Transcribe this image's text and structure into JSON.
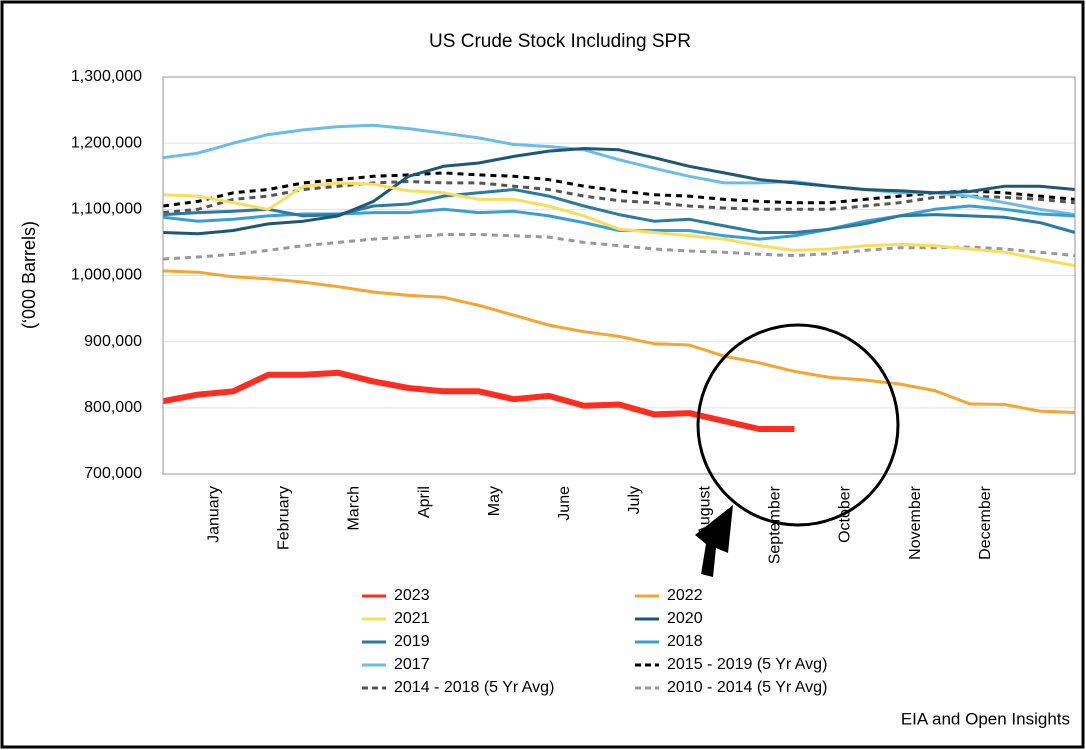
{
  "chart_data": {
    "type": "line",
    "title": "US Crude Stock Including SPR",
    "y_label": "(‘000 Barrels)",
    "source": "EIA and Open Insights",
    "categories": [
      null,
      "January",
      null,
      "February",
      null,
      "March",
      null,
      "April",
      null,
      "May",
      null,
      "June",
      null,
      "July",
      null,
      "August",
      null,
      "September",
      null,
      "October",
      null,
      "November",
      null,
      "December",
      null,
      null,
      null
    ],
    "ylim": [
      700000,
      1300000
    ],
    "yticks": [
      {
        "value": 700000,
        "label": "700,000"
      },
      {
        "value": 800000,
        "label": "800,000"
      },
      {
        "value": 900000,
        "label": "900,000"
      },
      {
        "value": 1000000,
        "label": "1,000,000"
      },
      {
        "value": 1100000,
        "label": "1,100,000"
      },
      {
        "value": 1200000,
        "label": "1,200,000"
      },
      {
        "value": 1300000,
        "label": "1,300,000"
      }
    ],
    "grid": true,
    "series": [
      {
        "name": "2023",
        "color": "#ff2d1f",
        "style": "solid",
        "values": [
          810000,
          820000,
          825000,
          850000,
          850000,
          853000,
          840000,
          830000,
          825000,
          825000,
          813000,
          818000,
          803000,
          805000,
          790000,
          792000,
          780000,
          768000,
          768000,
          null,
          null,
          null,
          null,
          null,
          null,
          null,
          null
        ]
      },
      {
        "name": "2022",
        "color": "#f7a531",
        "style": "solid",
        "values": [
          1007000,
          1005000,
          998000,
          995000,
          990000,
          983000,
          975000,
          970000,
          967000,
          955000,
          940000,
          925000,
          915000,
          908000,
          897000,
          895000,
          878000,
          868000,
          855000,
          846000,
          842000,
          836000,
          826000,
          806000,
          805000,
          795000,
          793000
        ]
      },
      {
        "name": "2021",
        "color": "#f8de5a",
        "style": "solid",
        "values": [
          1122000,
          1120000,
          1110000,
          1100000,
          1135000,
          1140000,
          1138000,
          1128000,
          1125000,
          1115000,
          1115000,
          1105000,
          1090000,
          1070000,
          1065000,
          1060000,
          1055000,
          1045000,
          1038000,
          1040000,
          1045000,
          1047000,
          1045000,
          1040000,
          1035000,
          1025000,
          1015000
        ]
      },
      {
        "name": "2020",
        "color": "#1d5876",
        "style": "solid",
        "values": [
          1065000,
          1063000,
          1068000,
          1078000,
          1082000,
          1090000,
          1112000,
          1150000,
          1165000,
          1170000,
          1180000,
          1188000,
          1192000,
          1190000,
          1178000,
          1165000,
          1155000,
          1145000,
          1140000,
          1135000,
          1130000,
          1128000,
          1125000,
          1127000,
          1135000,
          1135000,
          1130000
        ]
      },
      {
        "name": "2019",
        "color": "#2a7aa3",
        "style": "solid",
        "values": [
          1092000,
          1095000,
          1097000,
          1100000,
          1090000,
          1092000,
          1105000,
          1108000,
          1120000,
          1125000,
          1130000,
          1120000,
          1105000,
          1092000,
          1082000,
          1085000,
          1075000,
          1065000,
          1065000,
          1070000,
          1078000,
          1090000,
          1092000,
          1090000,
          1088000,
          1080000,
          1065000
        ]
      },
      {
        "name": "2018",
        "color": "#3a9ed6",
        "style": "solid",
        "values": [
          1088000,
          1082000,
          1085000,
          1090000,
          1093000,
          1093000,
          1095000,
          1095000,
          1100000,
          1095000,
          1097000,
          1090000,
          1080000,
          1068000,
          1068000,
          1068000,
          1060000,
          1055000,
          1060000,
          1070000,
          1082000,
          1090000,
          1100000,
          1105000,
          1100000,
          1093000,
          1090000
        ]
      },
      {
        "name": "2017",
        "color": "#6cbde6",
        "style": "solid",
        "values": [
          1178000,
          1185000,
          1200000,
          1213000,
          1220000,
          1225000,
          1227000,
          1222000,
          1215000,
          1208000,
          1198000,
          1195000,
          1190000,
          1175000,
          1162000,
          1150000,
          1140000,
          1140000,
          1142000,
          1135000,
          1130000,
          1125000,
          1125000,
          1120000,
          1110000,
          1100000,
          1092000
        ]
      },
      {
        "name": "2015 - 2019 (5 Yr Avg)",
        "color": "#000000",
        "style": "dashed",
        "values": [
          1105000,
          1112000,
          1125000,
          1130000,
          1140000,
          1145000,
          1150000,
          1152000,
          1155000,
          1152000,
          1150000,
          1145000,
          1135000,
          1128000,
          1122000,
          1120000,
          1115000,
          1112000,
          1110000,
          1110000,
          1115000,
          1120000,
          1125000,
          1128000,
          1125000,
          1120000,
          1115000
        ]
      },
      {
        "name": "2014 - 2018 (5 Yr Avg)",
        "color": "#555555",
        "style": "dashed",
        "values": [
          1095000,
          1100000,
          1115000,
          1120000,
          1130000,
          1135000,
          1140000,
          1142000,
          1140000,
          1140000,
          1135000,
          1130000,
          1120000,
          1113000,
          1110000,
          1105000,
          1102000,
          1100000,
          1100000,
          1100000,
          1105000,
          1110000,
          1118000,
          1120000,
          1118000,
          1115000,
          1110000
        ]
      },
      {
        "name": "2010 - 2014 (5 Yr Avg)",
        "color": "#999999",
        "style": "dashed",
        "values": [
          1025000,
          1028000,
          1032000,
          1038000,
          1045000,
          1050000,
          1055000,
          1058000,
          1062000,
          1062000,
          1060000,
          1058000,
          1050000,
          1045000,
          1040000,
          1037000,
          1035000,
          1032000,
          1030000,
          1033000,
          1038000,
          1042000,
          1042000,
          1043000,
          1040000,
          1035000,
          1030000
        ]
      }
    ]
  }
}
